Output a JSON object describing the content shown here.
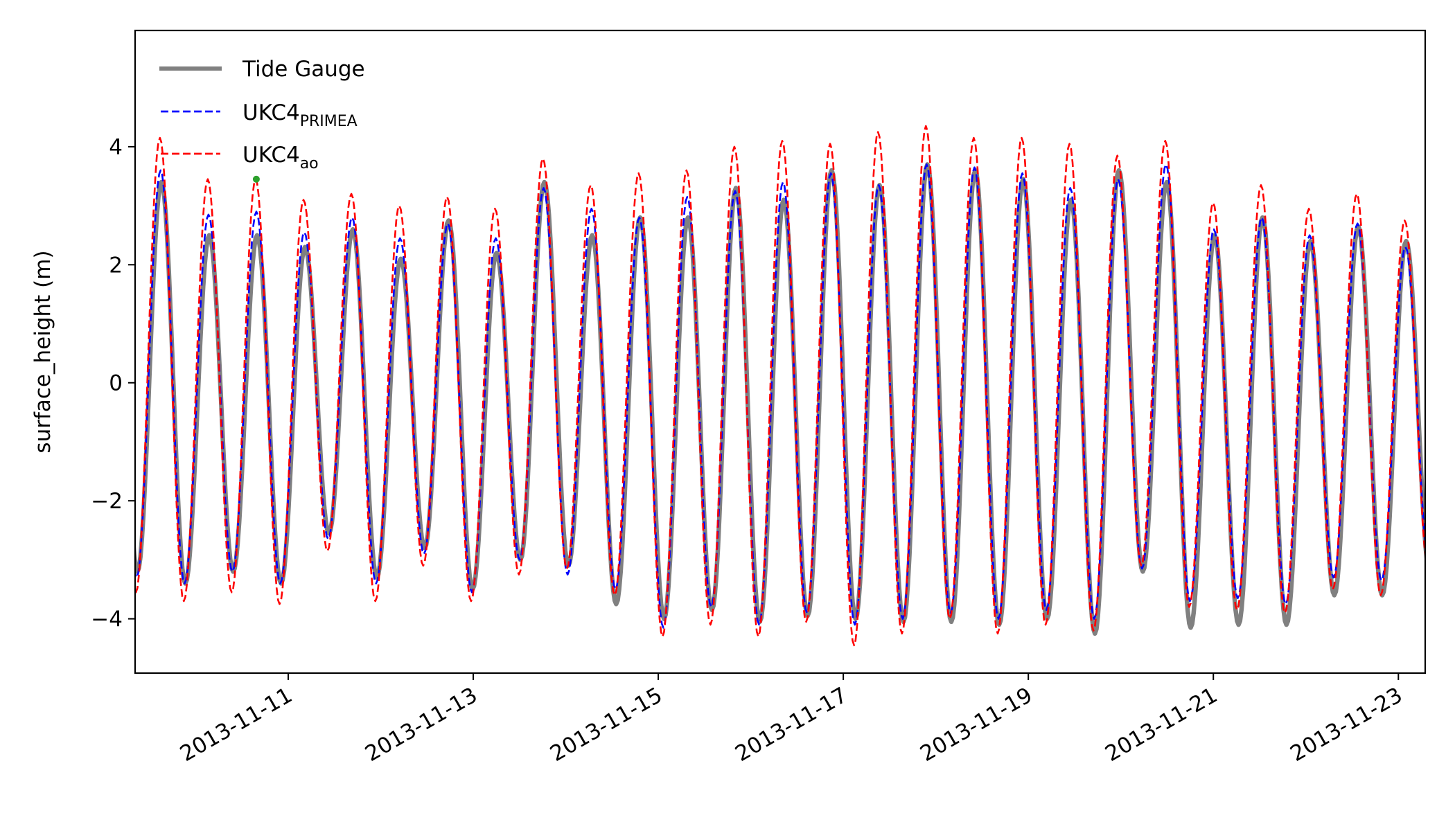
{
  "chart_data": {
    "type": "line",
    "title": "",
    "xlabel": "",
    "ylabel": "surface_height (m)",
    "x_units": "day of November 2013",
    "xlim": [
      9.345,
      23.29
    ],
    "ylim": [
      -4.92,
      5.97
    ],
    "yticks": [
      -4,
      -2,
      0,
      2,
      4
    ],
    "ytick_labels": [
      "−4",
      "−2",
      "0",
      "2",
      "4"
    ],
    "xticks": [
      11,
      13,
      15,
      17,
      19,
      21,
      23
    ],
    "xtick_labels": [
      "2013-11-11",
      "2013-11-13",
      "2013-11-15",
      "2013-11-17",
      "2013-11-19",
      "2013-11-21",
      "2013-11-23"
    ],
    "grid": false,
    "legend_placement": "top-left",
    "tide": {
      "first_low_water_day": 9.37,
      "half_period_days": 0.25875
    },
    "series": [
      {
        "name": "Tide Gauge",
        "label_main": "Tide Gauge",
        "label_sub": "",
        "color": "#808080",
        "style": "solid",
        "time_offset_days": 0,
        "low_waters": [
          -3.2,
          -3.4,
          -3.2,
          -3.4,
          -2.55,
          -3.3,
          -2.8,
          -3.5,
          -3.0,
          -3.1,
          -3.75,
          -4.0,
          -3.85,
          -4.05,
          -3.95,
          -4.0,
          -4.05,
          -4.05,
          -4.1,
          -4.0,
          -4.25,
          -3.2,
          -4.15,
          -4.1,
          -4.1,
          -3.6,
          -3.6,
          -3.25
        ],
        "high_waters": [
          3.4,
          2.5,
          2.5,
          2.3,
          2.6,
          2.1,
          2.75,
          2.2,
          3.4,
          2.5,
          2.8,
          2.8,
          3.3,
          3.1,
          3.6,
          3.35,
          3.7,
          3.6,
          3.45,
          3.1,
          3.6,
          3.4,
          2.5,
          2.8,
          2.4,
          2.65,
          2.4
        ]
      },
      {
        "name": "UKC4_PRIMEA",
        "label_main": "UKC4",
        "label_sub": "PRIMEA",
        "color": "#0000ff",
        "style": "dashed",
        "time_offset_days": -0.008,
        "low_waters": [
          -3.3,
          -3.4,
          -3.2,
          -3.4,
          -2.65,
          -3.4,
          -2.9,
          -3.55,
          -3.0,
          -3.25,
          -3.5,
          -4.15,
          -3.8,
          -4.1,
          -3.9,
          -4.1,
          -4.0,
          -3.9,
          -4.0,
          -3.85,
          -4.0,
          -3.15,
          -3.7,
          -3.65,
          -3.75,
          -3.3,
          -3.35,
          -3.1
        ],
        "high_waters": [
          3.6,
          2.85,
          2.9,
          2.55,
          2.8,
          2.45,
          2.7,
          2.45,
          3.3,
          2.95,
          2.8,
          3.15,
          3.25,
          3.4,
          3.55,
          3.35,
          3.7,
          3.65,
          3.55,
          3.3,
          3.45,
          3.7,
          2.6,
          2.8,
          2.5,
          2.7,
          2.3
        ]
      },
      {
        "name": "UKC4_ao",
        "label_main": "UKC4",
        "label_sub": "ao",
        "color": "#ff0000",
        "style": "dashed",
        "time_offset_days": -0.016,
        "low_waters": [
          -3.55,
          -3.7,
          -3.55,
          -3.75,
          -2.85,
          -3.7,
          -3.1,
          -3.7,
          -3.25,
          -3.15,
          -3.6,
          -4.3,
          -4.1,
          -4.3,
          -4.05,
          -4.45,
          -4.25,
          -4.0,
          -4.25,
          -4.1,
          -4.2,
          -3.1,
          -3.8,
          -3.85,
          -3.9,
          -3.5,
          -3.6,
          -3.2
        ],
        "high_waters": [
          4.15,
          3.45,
          3.45,
          3.1,
          3.2,
          3.0,
          3.15,
          2.95,
          3.8,
          3.35,
          3.55,
          3.6,
          4.0,
          4.1,
          4.05,
          4.25,
          4.35,
          4.15,
          4.15,
          4.05,
          3.85,
          4.1,
          3.05,
          3.35,
          2.95,
          3.2,
          2.75
        ]
      }
    ],
    "marker": {
      "x": 10.655,
      "y": 3.45,
      "color": "#2ca02c"
    }
  }
}
